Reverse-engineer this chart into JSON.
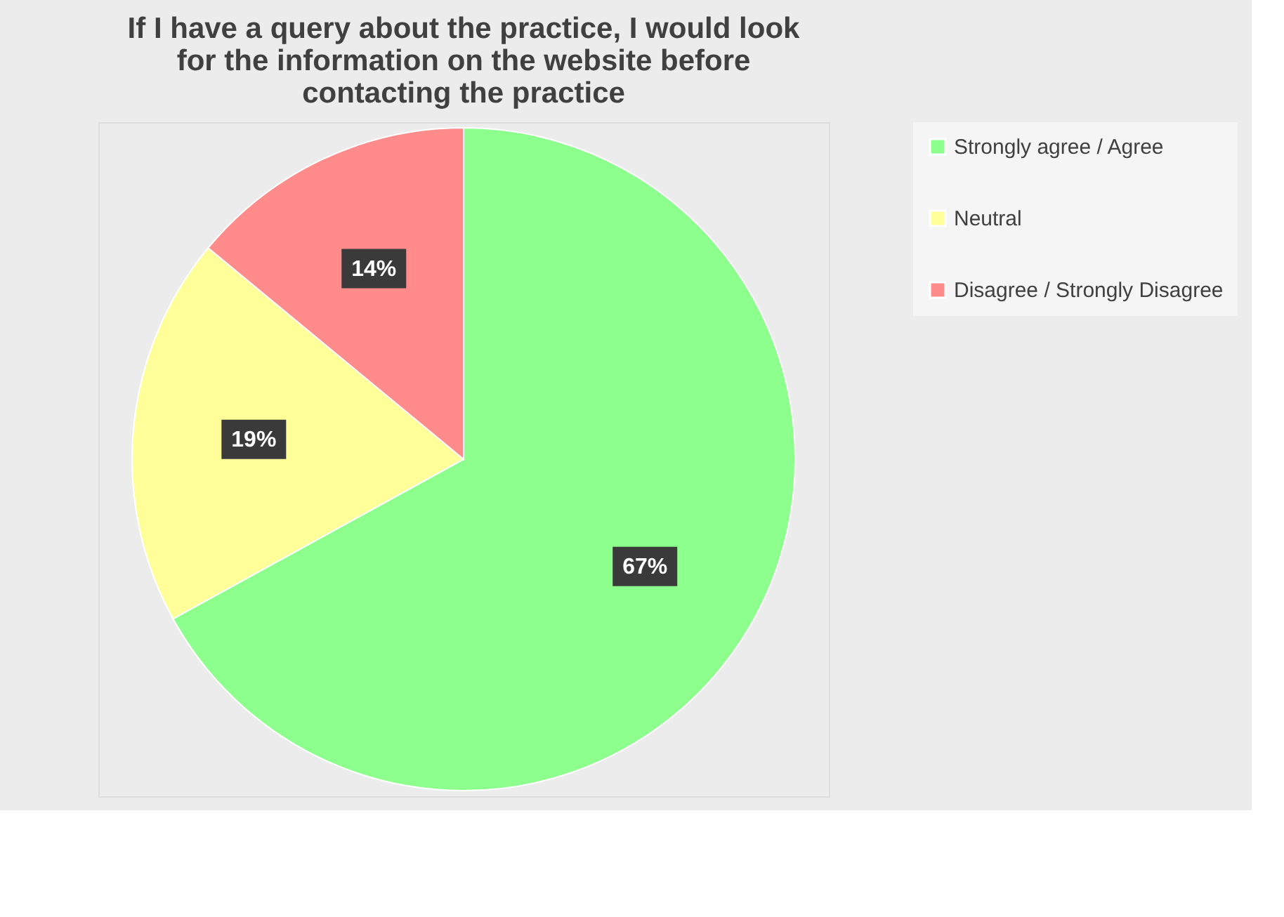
{
  "chart_data": {
    "type": "pie",
    "title": "If I have a query about the practice, I would look for the information on the website before contacting the practice",
    "categories": [
      "Strongly agree / Agree",
      "Neutral",
      "Disagree / Strongly Disagree"
    ],
    "values": [
      67,
      19,
      14
    ],
    "colors": [
      "#8cff8c",
      "#ffff99",
      "#ff8b8b"
    ],
    "value_labels": [
      "67%",
      "19%",
      "14%"
    ],
    "legend": "right"
  }
}
